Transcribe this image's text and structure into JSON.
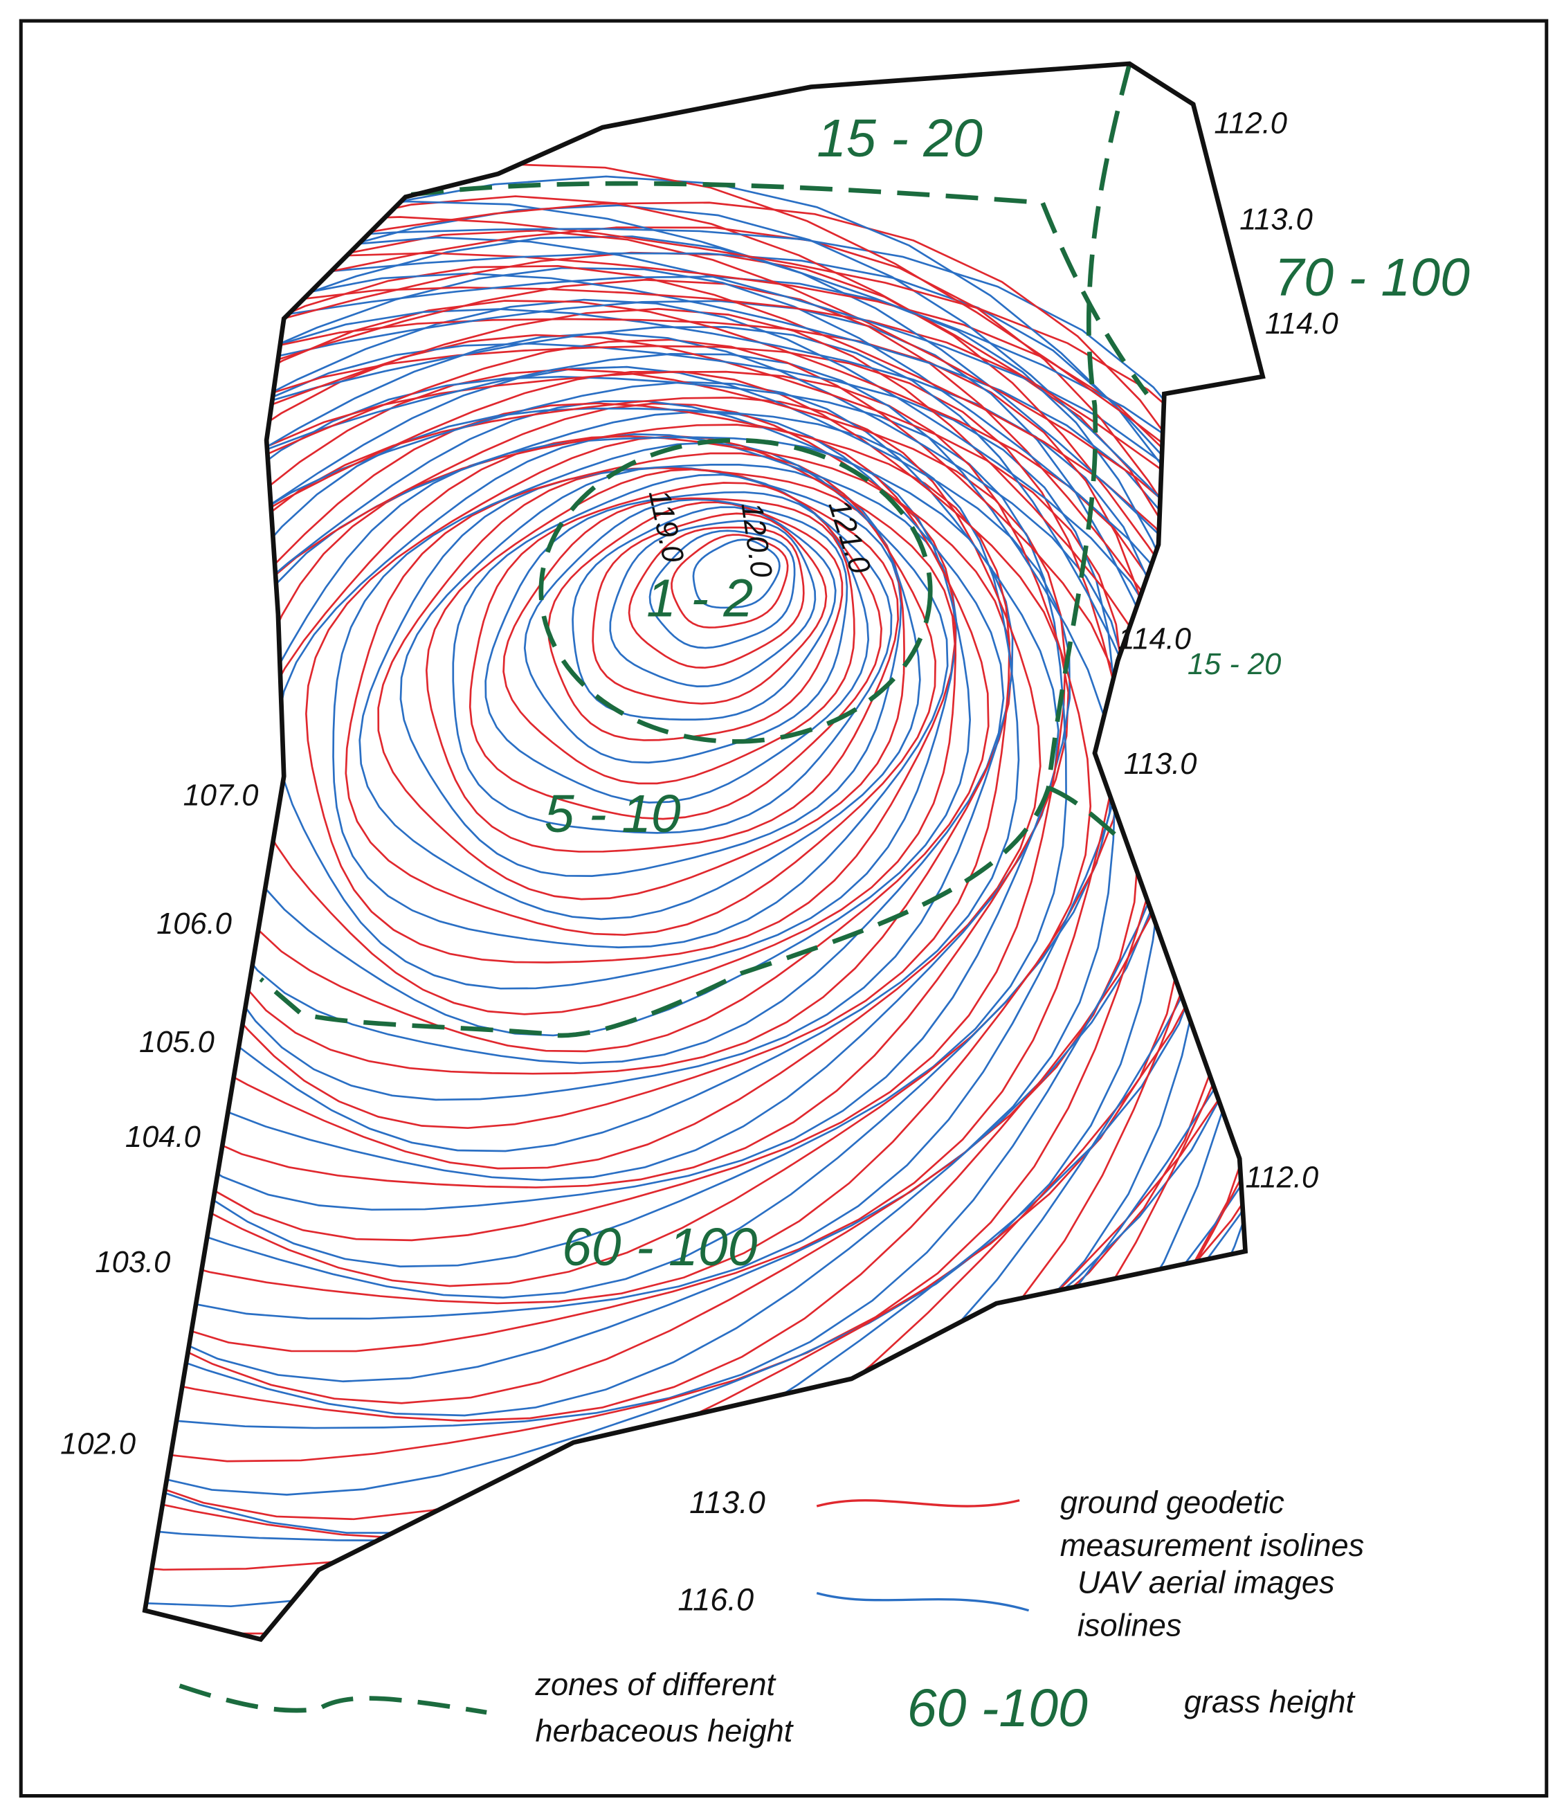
{
  "contour_labels": [
    "112.0",
    "113.0",
    "114.0",
    "119.0",
    "120.0",
    "121.0",
    "114.0",
    "113.0",
    "107.0",
    "106.0",
    "105.0",
    "104.0",
    "103.0",
    "102.0",
    "112.0"
  ],
  "zone_labels": [
    "15 - 20",
    "70 - 100",
    "1 - 2",
    "15 - 20",
    "5 - 10",
    "60 - 100"
  ],
  "legend": {
    "ground": {
      "sample": "113.0",
      "lines": [
        "ground geodetic",
        "measurement isolines"
      ]
    },
    "uav": {
      "sample": "116.0",
      "lines": [
        "UAV aerial images",
        "isolines"
      ]
    },
    "zones": {
      "lines": [
        "zones of different",
        "herbaceous height"
      ]
    },
    "grass": {
      "sample": "60 -100",
      "label": "grass height"
    }
  }
}
